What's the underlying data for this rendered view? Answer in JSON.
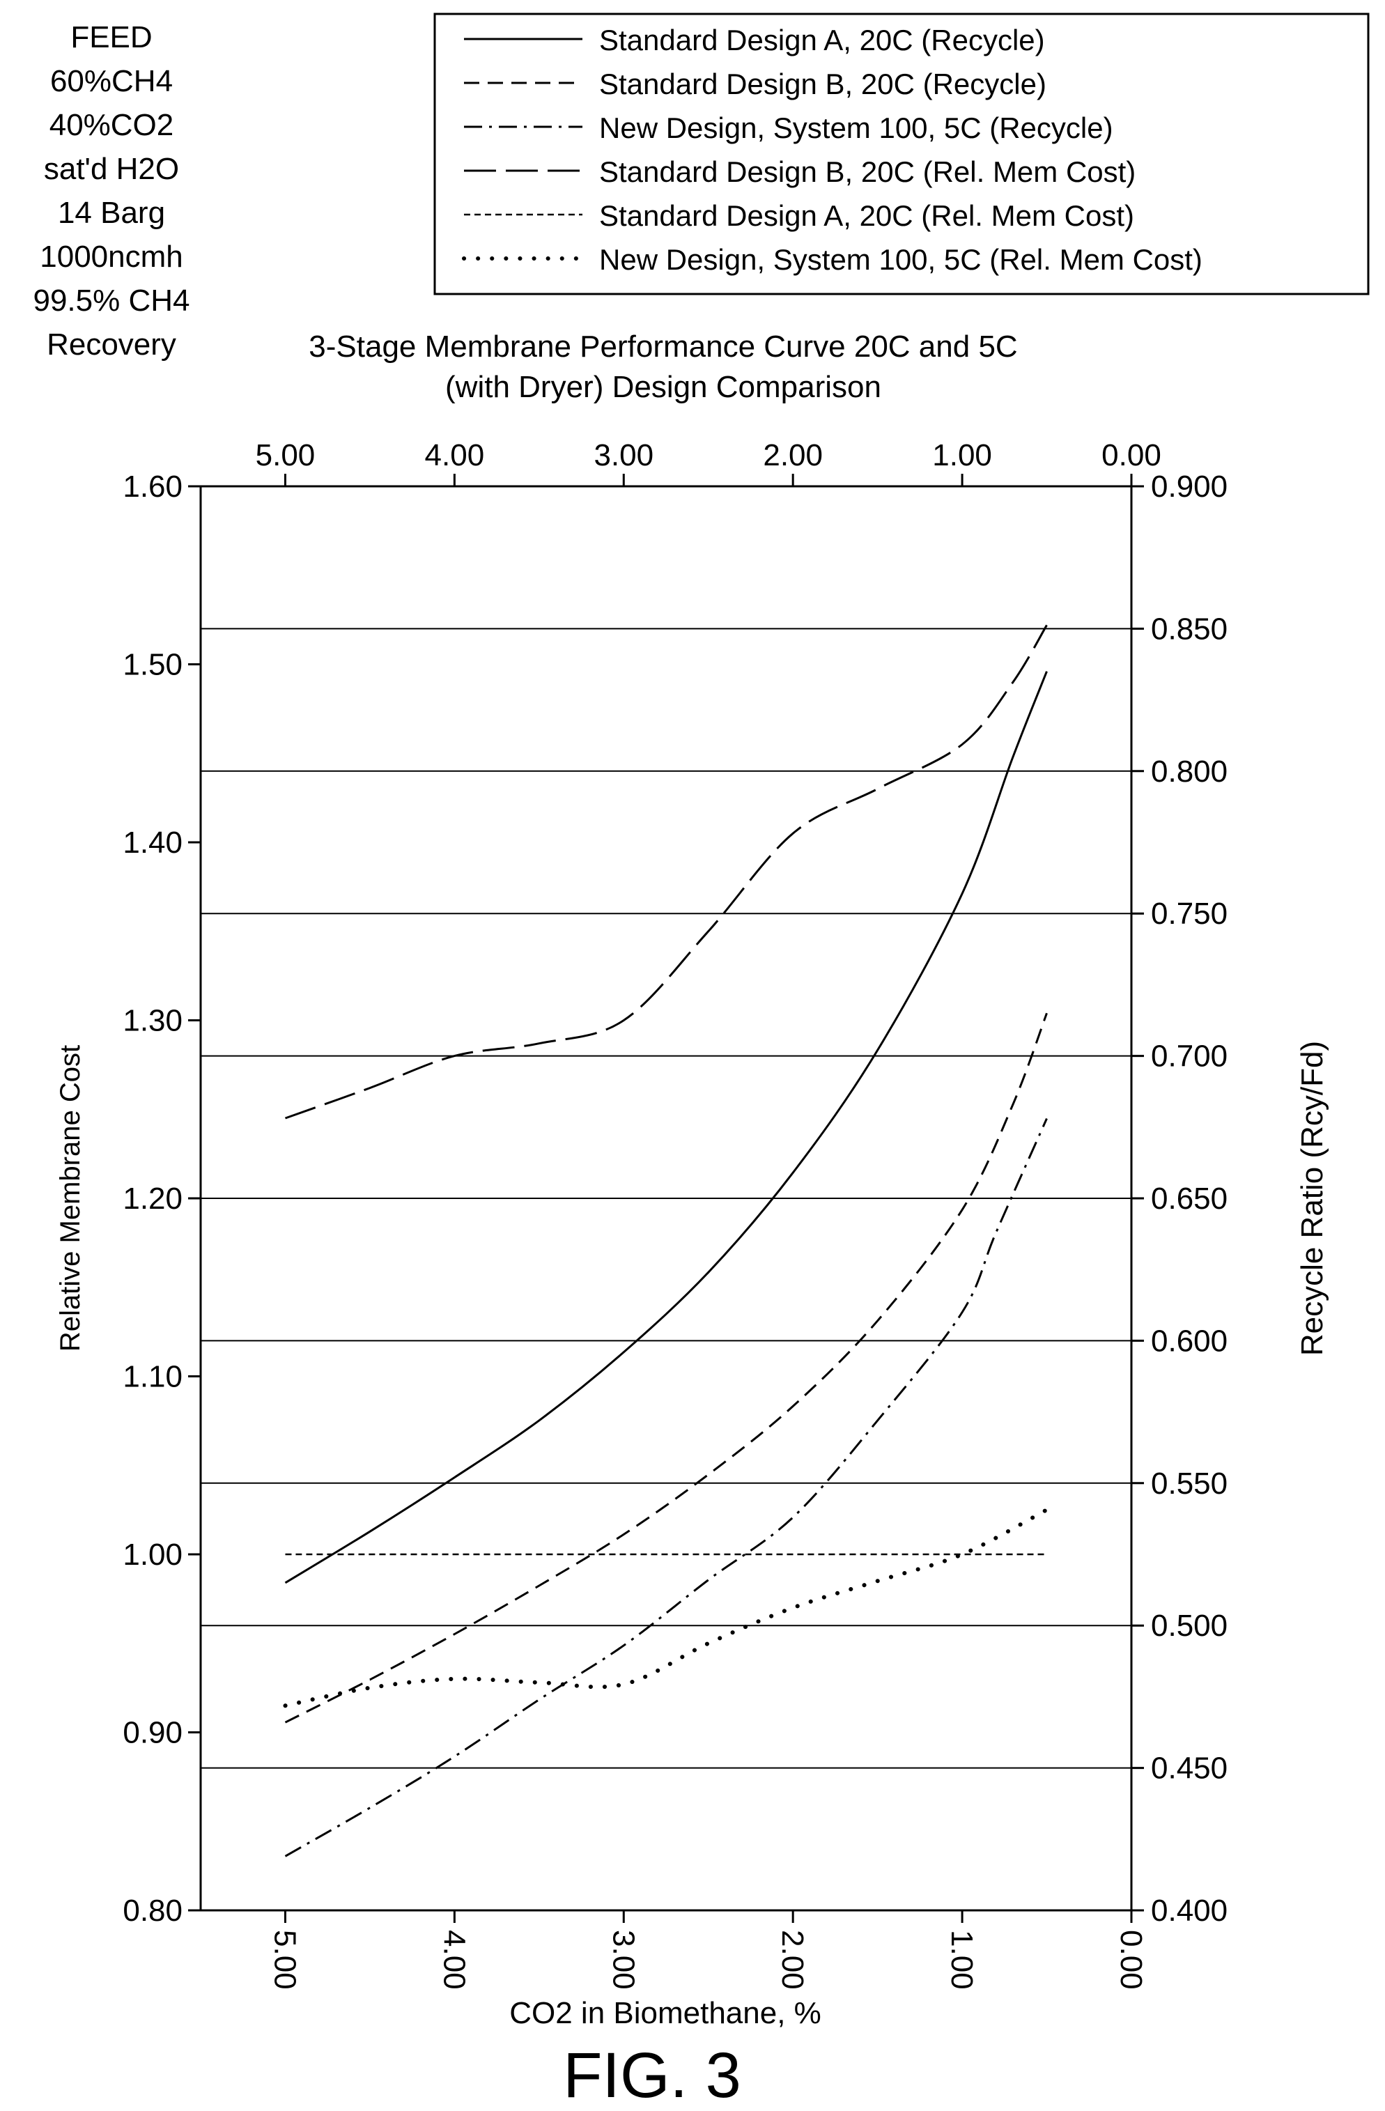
{
  "feed_info": [
    "FEED",
    "60%CH4",
    "40%CO2",
    "sat'd H2O",
    "14 Barg",
    "1000ncmh",
    "99.5% CH4",
    "Recovery"
  ],
  "figure_label": "FIG. 3",
  "chart_data": {
    "type": "line",
    "title_lines": [
      "3-Stage Membrane Performance Curve 20C and 5C",
      "(with Dryer) Design Comparison"
    ],
    "xlabel": "CO2 in Biomethane, %",
    "ylabel": "Relative Membrane Cost",
    "y2label": "Recycle Ratio (Rcy/Fd)",
    "xlim": [
      5.5,
      0.0
    ],
    "ylim": [
      0.8,
      1.6
    ],
    "y2lim": [
      0.4,
      0.9
    ],
    "x_reversed": true,
    "x_ticks": [
      "5.00",
      "4.00",
      "3.00",
      "2.00",
      "1.00",
      "0.00"
    ],
    "x_tick_values": [
      5,
      4,
      3,
      2,
      1,
      0
    ],
    "y_ticks": [
      "0.80",
      "0.90",
      "1.00",
      "1.10",
      "1.20",
      "1.30",
      "1.40",
      "1.50",
      "1.60"
    ],
    "y_tick_values": [
      0.8,
      0.9,
      1.0,
      1.1,
      1.2,
      1.3,
      1.4,
      1.5,
      1.6
    ],
    "y2_ticks": [
      "0.400",
      "0.450",
      "0.500",
      "0.550",
      "0.600",
      "0.650",
      "0.700",
      "0.750",
      "0.800",
      "0.850",
      "0.900"
    ],
    "y2_tick_values": [
      0.4,
      0.45,
      0.5,
      0.55,
      0.6,
      0.65,
      0.7,
      0.75,
      0.8,
      0.85,
      0.9
    ],
    "horizontal_gridlines_y2": [
      0.45,
      0.5,
      0.55,
      0.6,
      0.65,
      0.7,
      0.75,
      0.8,
      0.85
    ],
    "legend_position": "top-right",
    "series": [
      {
        "name": "Standard Design A, 20C (Recycle)",
        "axis": "y2",
        "style": "solid",
        "x": [
          5.0,
          4.5,
          4.0,
          3.5,
          3.0,
          2.5,
          2.0,
          1.5,
          1.0,
          0.7,
          0.5
        ],
        "values": [
          0.515,
          0.533,
          0.552,
          0.572,
          0.596,
          0.624,
          0.659,
          0.702,
          0.757,
          0.805,
          0.835
        ]
      },
      {
        "name": "Standard Design B, 20C (Recycle)",
        "axis": "y2",
        "style": "dash",
        "x": [
          5.0,
          4.5,
          4.0,
          3.5,
          3.0,
          2.5,
          2.0,
          1.5,
          1.0,
          0.7,
          0.5
        ],
        "values": [
          0.466,
          0.481,
          0.497,
          0.514,
          0.532,
          0.553,
          0.577,
          0.607,
          0.646,
          0.683,
          0.715
        ]
      },
      {
        "name": "New Design, System 100, 5C (Recycle)",
        "axis": "y2",
        "style": "dashdot",
        "x": [
          5.0,
          4.5,
          4.0,
          3.5,
          3.0,
          2.5,
          2.0,
          1.5,
          1.0,
          0.8,
          0.5
        ],
        "values": [
          0.419,
          0.436,
          0.454,
          0.474,
          0.493,
          0.516,
          0.538,
          0.572,
          0.61,
          0.638,
          0.678
        ]
      },
      {
        "name": "Standard Design B, 20C (Rel. Mem Cost)",
        "axis": "y",
        "style": "longdash",
        "x": [
          5.0,
          4.5,
          4.0,
          3.5,
          3.0,
          2.5,
          2.0,
          1.5,
          1.0,
          0.7,
          0.5
        ],
        "values": [
          1.245,
          1.262,
          1.28,
          1.287,
          1.3,
          1.35,
          1.405,
          1.43,
          1.455,
          1.49,
          1.522
        ]
      },
      {
        "name": "Standard Design A, 20C (Rel. Mem Cost)",
        "axis": "y",
        "style": "shortdash",
        "x": [
          5.0,
          4.0,
          3.0,
          2.0,
          1.0,
          0.5
        ],
        "values": [
          1.0,
          1.0,
          1.0,
          1.0,
          1.0,
          1.0
        ]
      },
      {
        "name": "New Design, System 100, 5C (Rel. Mem Cost)",
        "axis": "y",
        "style": "dotted",
        "x": [
          5.0,
          4.5,
          4.0,
          3.5,
          3.0,
          2.5,
          2.0,
          1.5,
          1.0,
          0.5
        ],
        "values": [
          0.915,
          0.925,
          0.93,
          0.928,
          0.927,
          0.95,
          0.97,
          0.985,
          1.0,
          1.025
        ]
      }
    ]
  }
}
